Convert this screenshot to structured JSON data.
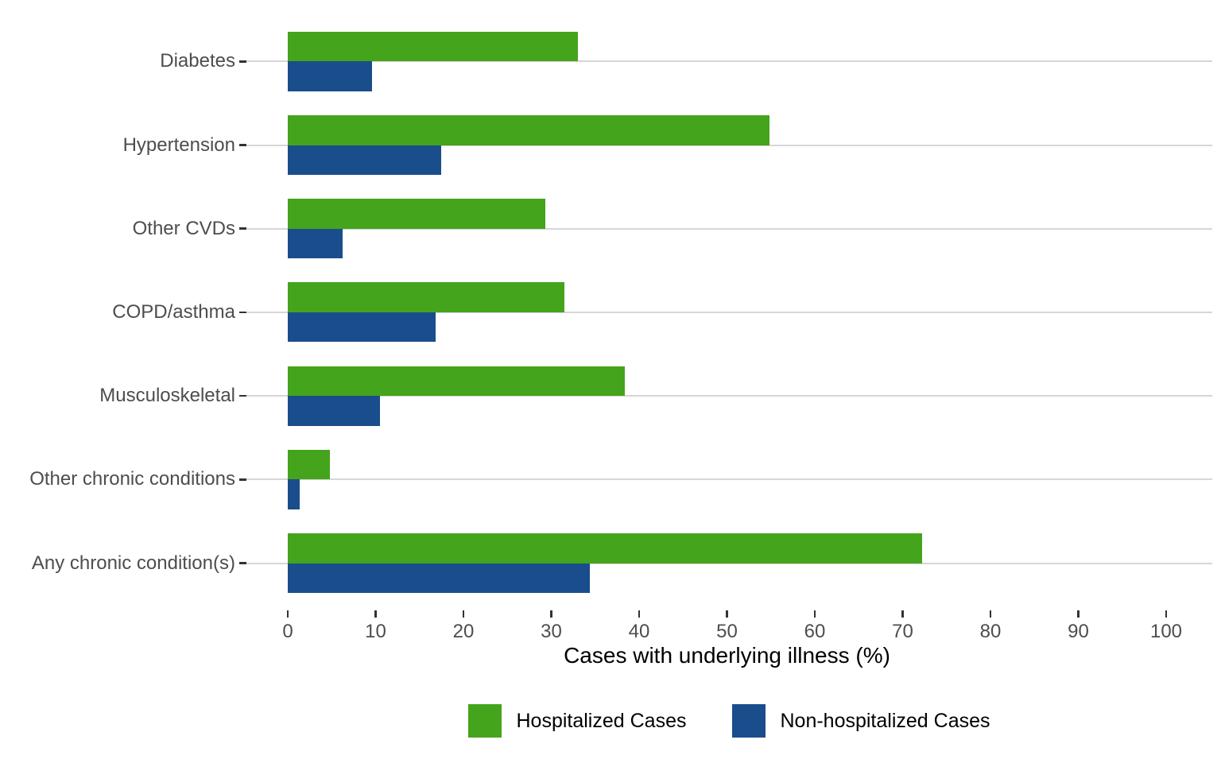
{
  "chart_data": {
    "type": "bar",
    "orientation": "horizontal",
    "title": "",
    "xlabel": "Cases with underlying illness (%)",
    "ylabel": "",
    "categories": [
      "Diabetes",
      "Hypertension",
      "Other CVDs",
      "COPD/asthma",
      "Musculoskeletal",
      "Other chronic conditions",
      "Any chronic condition(s)"
    ],
    "series": [
      {
        "name": "Hospitalized Cases",
        "color": "#44a41c",
        "values": [
          33.0,
          54.8,
          29.3,
          31.5,
          38.4,
          4.8,
          72.2
        ]
      },
      {
        "name": "Non-hospitalized Cases",
        "color": "#1a4d8c",
        "values": [
          9.6,
          17.5,
          6.2,
          16.8,
          10.5,
          1.4,
          34.4
        ]
      }
    ],
    "xlim": [
      0,
      100
    ],
    "xticks": [
      0,
      10,
      20,
      30,
      40,
      50,
      60,
      70,
      80,
      90,
      100
    ],
    "grid": "horizontal-major-only",
    "legend_position": "bottom"
  }
}
